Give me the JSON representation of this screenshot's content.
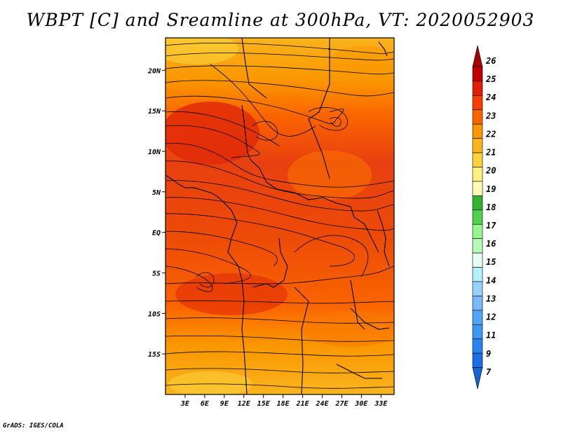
{
  "title": "WBPT [C] and Sreamline at 300hPa, VT: 2020052903",
  "credit": "GrADS: IGES/COLA",
  "map": {
    "lon_range": [
      0,
      35
    ],
    "lat_range": [
      -20,
      24
    ],
    "lat_ticks": [
      {
        "value": 20,
        "label": "20N"
      },
      {
        "value": 15,
        "label": "15N"
      },
      {
        "value": 10,
        "label": "10N"
      },
      {
        "value": 5,
        "label": "5N"
      },
      {
        "value": 0,
        "label": "EQ"
      },
      {
        "value": -5,
        "label": "5S"
      },
      {
        "value": -10,
        "label": "10S"
      },
      {
        "value": -15,
        "label": "15S"
      }
    ],
    "lon_ticks": [
      {
        "value": 3,
        "label": "3E"
      },
      {
        "value": 6,
        "label": "6E"
      },
      {
        "value": 9,
        "label": "9E"
      },
      {
        "value": 12,
        "label": "12E"
      },
      {
        "value": 15,
        "label": "15E"
      },
      {
        "value": 18,
        "label": "18E"
      },
      {
        "value": 21,
        "label": "21E"
      },
      {
        "value": 24,
        "label": "24E"
      },
      {
        "value": 27,
        "label": "27E"
      },
      {
        "value": 30,
        "label": "30E"
      },
      {
        "value": 33,
        "label": "33E"
      }
    ]
  },
  "colorbar": {
    "levels": [
      {
        "label": "26",
        "color": "#a50000"
      },
      {
        "label": "25",
        "color": "#c00000"
      },
      {
        "label": "24",
        "color": "#e11e00"
      },
      {
        "label": "23",
        "color": "#fa3c00"
      },
      {
        "label": "22",
        "color": "#fa6400"
      },
      {
        "label": "21",
        "color": "#fa9600"
      },
      {
        "label": "20",
        "color": "#fab41e"
      },
      {
        "label": "19",
        "color": "#fad23c"
      },
      {
        "label": "18",
        "color": "#fff082"
      },
      {
        "label": "17",
        "color": "#fffab4"
      },
      {
        "label": "16",
        "color": "#32b432"
      },
      {
        "label": "15",
        "color": "#50d250"
      },
      {
        "label": "14",
        "color": "#96f58c"
      },
      {
        "label": "13",
        "color": "#b4fab4"
      },
      {
        "label": "12",
        "color": "#e6fff0"
      },
      {
        "label": "11",
        "color": "#b4f0fa"
      },
      {
        "label": "9",
        "color": "#96d2fa"
      },
      {
        "label": "7",
        "color": "#78b9fa"
      }
    ],
    "extra_colors": [
      "#50a5f5",
      "#3c97f5",
      "#2882f0",
      "#1e6ee6",
      "#1464d2"
    ]
  }
}
